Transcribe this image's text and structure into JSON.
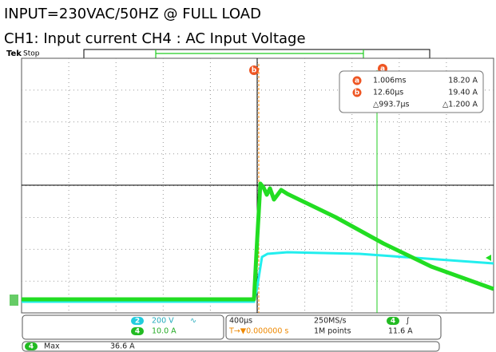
{
  "header": {
    "line1": "INPUT=230VAC/50HZ @ FULL LOAD",
    "line2": "CH1: Input current   CH4 : AC Input Voltage"
  },
  "status": {
    "brand": "Tek",
    "state": "Stop"
  },
  "cursors": {
    "a": "a",
    "b": "b"
  },
  "readout": {
    "rows": [
      {
        "tag": "a",
        "time": "1.006ms",
        "amp": "18.20 A"
      },
      {
        "tag": "b",
        "time": "12.60µs",
        "amp": "19.40 A"
      },
      {
        "time": "△993.7µs",
        "amp": "△1.200 A"
      }
    ]
  },
  "channels": {
    "ch2": {
      "id": "2",
      "scale": "200 V",
      "coupling": "∿"
    },
    "ch4": {
      "id": "4",
      "scale": "10.0 A"
    }
  },
  "timebase": {
    "scale": "400µs",
    "trigger_pos": "T→▼0.000000 s",
    "rate": "250MS/s",
    "points": "1M points"
  },
  "trigger": {
    "source": "4",
    "slope": "∫",
    "level": "11.6 A"
  },
  "measure": {
    "source": "4",
    "name": "Max",
    "value": "36.6 A"
  }
}
